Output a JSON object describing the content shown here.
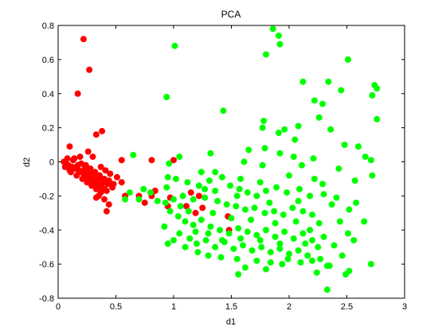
{
  "chart_data": {
    "type": "scatter",
    "title": "PCA",
    "xlabel": "d1",
    "ylabel": "d2",
    "xlim": [
      0,
      3
    ],
    "ylim": [
      -0.8,
      0.8
    ],
    "xticks": [
      0,
      0.5,
      1,
      1.5,
      2,
      2.5,
      3
    ],
    "yticks": [
      -0.8,
      -0.6,
      -0.4,
      -0.2,
      0,
      0.2,
      0.4,
      0.6,
      0.8
    ],
    "xtick_labels": [
      "0",
      "0.5",
      "1",
      "1.5",
      "2",
      "2.5",
      "3"
    ],
    "ytick_labels": [
      "-0.8",
      "-0.6",
      "-0.4",
      "-0.2",
      "0",
      "0.2",
      "0.4",
      "0.6",
      "0.8"
    ],
    "grid": false,
    "series": [
      {
        "color": "#ff0000",
        "points": [
          [
            0.22,
            0.72
          ],
          [
            0.27,
            0.54
          ],
          [
            0.17,
            0.4
          ],
          [
            0.38,
            0.18
          ],
          [
            0.33,
            0.16
          ],
          [
            0.1,
            0.09
          ],
          [
            0.26,
            0.06
          ],
          [
            0.3,
            0.03
          ],
          [
            0.08,
            0.02
          ],
          [
            0.14,
            0.02
          ],
          [
            0.19,
            0.03
          ],
          [
            0.05,
            0.0
          ],
          [
            0.07,
            -0.01
          ],
          [
            0.09,
            -0.02
          ],
          [
            0.12,
            -0.03
          ],
          [
            0.15,
            -0.04
          ],
          [
            0.18,
            -0.05
          ],
          [
            0.2,
            -0.06
          ],
          [
            0.22,
            -0.07
          ],
          [
            0.24,
            -0.08
          ],
          [
            0.26,
            -0.09
          ],
          [
            0.28,
            -0.1
          ],
          [
            0.3,
            -0.11
          ],
          [
            0.32,
            -0.12
          ],
          [
            0.34,
            -0.13
          ],
          [
            0.36,
            -0.14
          ],
          [
            0.38,
            -0.15
          ],
          [
            0.4,
            -0.16
          ],
          [
            0.42,
            -0.17
          ],
          [
            0.11,
            -0.06
          ],
          [
            0.16,
            -0.08
          ],
          [
            0.21,
            -0.1
          ],
          [
            0.25,
            -0.12
          ],
          [
            0.29,
            -0.14
          ],
          [
            0.33,
            -0.16
          ],
          [
            0.37,
            -0.18
          ],
          [
            0.13,
            0.01
          ],
          [
            0.17,
            -0.02
          ],
          [
            0.23,
            -0.04
          ],
          [
            0.27,
            -0.06
          ],
          [
            0.31,
            -0.08
          ],
          [
            0.35,
            -0.1
          ],
          [
            0.39,
            -0.12
          ],
          [
            0.43,
            -0.13
          ],
          [
            0.47,
            -0.15
          ],
          [
            0.51,
            -0.09
          ],
          [
            0.55,
            -0.12
          ],
          [
            0.45,
            -0.07
          ],
          [
            0.41,
            -0.05
          ],
          [
            0.37,
            -0.03
          ],
          [
            0.06,
            -0.03
          ],
          [
            0.1,
            -0.05
          ],
          [
            0.2,
            -0.01
          ],
          [
            0.24,
            -0.02
          ],
          [
            0.28,
            -0.04
          ],
          [
            0.32,
            -0.06
          ],
          [
            0.36,
            -0.08
          ],
          [
            0.4,
            -0.1
          ],
          [
            0.44,
            -0.11
          ],
          [
            0.48,
            -0.13
          ],
          [
            0.35,
            -0.2
          ],
          [
            0.4,
            -0.22
          ],
          [
            0.44,
            -0.25
          ],
          [
            0.42,
            -0.29
          ],
          [
            0.33,
            -0.21
          ],
          [
            0.58,
            -0.2
          ],
          [
            0.75,
            -0.24
          ],
          [
            0.81,
            -0.2
          ],
          [
            0.97,
            -0.21
          ],
          [
            0.84,
            -0.17
          ],
          [
            1.15,
            -0.18
          ],
          [
            1.22,
            -0.2
          ],
          [
            1.11,
            -0.26
          ],
          [
            1.19,
            -0.3
          ],
          [
            1.25,
            -0.27
          ],
          [
            1.47,
            -0.32
          ],
          [
            1.48,
            -0.4
          ],
          [
            0.81,
            0.01
          ],
          [
            0.55,
            0.01
          ],
          [
            0.95,
            -0.26
          ],
          [
            1.0,
            0.01
          ],
          [
            0.7,
            -0.2
          ]
        ]
      },
      {
        "color": "#00ff00",
        "points": [
          [
            1.86,
            0.78
          ],
          [
            1.91,
            0.74
          ],
          [
            1.92,
            0.69
          ],
          [
            1.8,
            0.63
          ],
          [
            1.01,
            0.68
          ],
          [
            2.51,
            0.6
          ],
          [
            2.12,
            0.47
          ],
          [
            2.34,
            0.47
          ],
          [
            2.74,
            0.45
          ],
          [
            2.76,
            0.43
          ],
          [
            2.45,
            0.42
          ],
          [
            0.94,
            0.38
          ],
          [
            2.72,
            0.39
          ],
          [
            2.22,
            0.36
          ],
          [
            2.29,
            0.34
          ],
          [
            1.43,
            0.3
          ],
          [
            1.78,
            0.24
          ],
          [
            2.76,
            0.25
          ],
          [
            2.26,
            0.26
          ],
          [
            1.96,
            0.19
          ],
          [
            2.08,
            0.21
          ],
          [
            1.77,
            0.2
          ],
          [
            1.91,
            0.17
          ],
          [
            2.36,
            0.19
          ],
          [
            2.05,
            0.13
          ],
          [
            2.48,
            0.1
          ],
          [
            2.6,
            0.09
          ],
          [
            2.66,
            0.03
          ],
          [
            1.65,
            0.07
          ],
          [
            1.79,
            0.08
          ],
          [
            1.32,
            0.05
          ],
          [
            1.05,
            0.03
          ],
          [
            1.92,
            0.05
          ],
          [
            2.04,
            0.03
          ],
          [
            2.21,
            0.02
          ],
          [
            2.71,
            0.01
          ],
          [
            2.11,
            -0.02
          ],
          [
            2.43,
            -0.04
          ],
          [
            1.61,
            0.0
          ],
          [
            1.77,
            -0.02
          ],
          [
            0.96,
            -0.01
          ],
          [
            2.72,
            -0.08
          ],
          [
            1.42,
            -0.09
          ],
          [
            1.58,
            -0.1
          ],
          [
            1.75,
            -0.12
          ],
          [
            2.0,
            -0.08
          ],
          [
            2.22,
            -0.1
          ],
          [
            2.29,
            -0.13
          ],
          [
            2.57,
            -0.11
          ],
          [
            0.95,
            -0.09
          ],
          [
            1.02,
            -0.1
          ],
          [
            1.12,
            -0.12
          ],
          [
            1.22,
            -0.14
          ],
          [
            1.31,
            -0.11
          ],
          [
            1.36,
            -0.17
          ],
          [
            1.49,
            -0.14
          ],
          [
            1.57,
            -0.16
          ],
          [
            1.64,
            -0.18
          ],
          [
            1.72,
            -0.2
          ],
          [
            1.8,
            -0.17
          ],
          [
            1.89,
            -0.15
          ],
          [
            1.98,
            -0.18
          ],
          [
            2.09,
            -0.16
          ],
          [
            2.18,
            -0.2
          ],
          [
            2.3,
            -0.19
          ],
          [
            2.41,
            -0.21
          ],
          [
            2.58,
            -0.24
          ],
          [
            0.74,
            -0.16
          ],
          [
            0.62,
            -0.18
          ],
          [
            0.58,
            -0.22
          ],
          [
            0.8,
            -0.18
          ],
          [
            0.86,
            -0.23
          ],
          [
            0.93,
            -0.24
          ],
          [
            1.0,
            -0.22
          ],
          [
            1.08,
            -0.2
          ],
          [
            1.17,
            -0.22
          ],
          [
            1.27,
            -0.21
          ],
          [
            1.38,
            -0.23
          ],
          [
            1.46,
            -0.25
          ],
          [
            1.54,
            -0.26
          ],
          [
            1.62,
            -0.28
          ],
          [
            1.7,
            -0.27
          ],
          [
            1.79,
            -0.3
          ],
          [
            1.87,
            -0.29
          ],
          [
            1.95,
            -0.31
          ],
          [
            2.03,
            -0.27
          ],
          [
            2.12,
            -0.29
          ],
          [
            2.2,
            -0.31
          ],
          [
            2.26,
            -0.36
          ],
          [
            2.52,
            -0.28
          ],
          [
            2.37,
            -0.25
          ],
          [
            0.97,
            -0.29
          ],
          [
            1.04,
            -0.32
          ],
          [
            1.1,
            -0.35
          ],
          [
            1.17,
            -0.37
          ],
          [
            1.24,
            -0.34
          ],
          [
            1.32,
            -0.38
          ],
          [
            1.4,
            -0.4
          ],
          [
            1.48,
            -0.42
          ],
          [
            1.56,
            -0.39
          ],
          [
            1.64,
            -0.41
          ],
          [
            1.72,
            -0.43
          ],
          [
            1.8,
            -0.4
          ],
          [
            1.88,
            -0.44
          ],
          [
            1.96,
            -0.41
          ],
          [
            2.04,
            -0.45
          ],
          [
            2.12,
            -0.42
          ],
          [
            2.2,
            -0.46
          ],
          [
            2.3,
            -0.44
          ],
          [
            2.51,
            -0.42
          ],
          [
            0.92,
            -0.38
          ],
          [
            1.05,
            -0.42
          ],
          [
            1.14,
            -0.45
          ],
          [
            1.2,
            -0.48
          ],
          [
            1.28,
            -0.46
          ],
          [
            1.36,
            -0.5
          ],
          [
            1.44,
            -0.47
          ],
          [
            1.52,
            -0.51
          ],
          [
            1.6,
            -0.49
          ],
          [
            1.68,
            -0.52
          ],
          [
            1.76,
            -0.5
          ],
          [
            1.84,
            -0.53
          ],
          [
            1.92,
            -0.51
          ],
          [
            2.0,
            -0.54
          ],
          [
            2.08,
            -0.52
          ],
          [
            2.16,
            -0.55
          ],
          [
            2.27,
            -0.57
          ],
          [
            0.95,
            -0.48
          ],
          [
            1.0,
            -0.46
          ],
          [
            1.1,
            -0.5
          ],
          [
            1.21,
            -0.53
          ],
          [
            1.3,
            -0.55
          ],
          [
            1.41,
            -0.56
          ],
          [
            1.55,
            -0.57
          ],
          [
            1.72,
            -0.58
          ],
          [
            1.84,
            -0.59
          ],
          [
            1.99,
            -0.57
          ],
          [
            2.1,
            -0.59
          ],
          [
            2.33,
            -0.61
          ],
          [
            2.46,
            -0.55
          ],
          [
            2.71,
            -0.6
          ],
          [
            1.62,
            -0.62
          ],
          [
            1.8,
            -0.63
          ],
          [
            1.94,
            -0.6
          ],
          [
            2.2,
            -0.58
          ],
          [
            1.56,
            -0.66
          ],
          [
            2.24,
            -0.65
          ],
          [
            2.49,
            -0.66
          ],
          [
            2.35,
            -0.61
          ],
          [
            2.39,
            -0.49
          ],
          [
            2.52,
            -0.64
          ],
          [
            2.33,
            -0.75
          ],
          [
            0.94,
            -0.15
          ],
          [
            1.27,
            -0.16
          ],
          [
            1.55,
            -0.2
          ],
          [
            1.83,
            -0.24
          ],
          [
            2.08,
            -0.23
          ],
          [
            2.18,
            -0.4
          ],
          [
            2.44,
            -0.35
          ],
          [
            2.25,
            -0.5
          ],
          [
            2.56,
            -0.46
          ],
          [
            1.67,
            -0.34
          ],
          [
            1.5,
            -0.33
          ],
          [
            1.34,
            -0.3
          ],
          [
            1.88,
            -0.36
          ],
          [
            2.06,
            -0.35
          ],
          [
            1.42,
            -0.46
          ],
          [
            1.58,
            -0.45
          ],
          [
            1.75,
            -0.46
          ],
          [
            1.92,
            -0.48
          ],
          [
            2.14,
            -0.48
          ],
          [
            1.3,
            -0.42
          ],
          [
            1.19,
            -0.41
          ],
          [
            1.13,
            -0.29
          ],
          [
            1.06,
            -0.26
          ],
          [
            2.65,
            -0.35
          ],
          [
            0.65,
            0.04
          ],
          [
            0.7,
            -0.22
          ],
          [
            1.24,
            -0.06
          ],
          [
            1.36,
            -0.06
          ]
        ]
      }
    ]
  }
}
